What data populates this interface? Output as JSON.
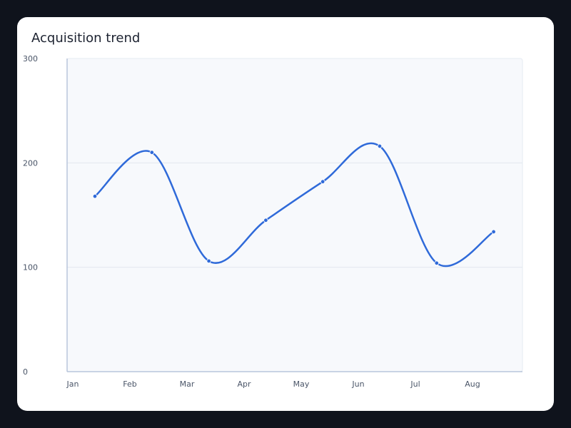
{
  "chart_data": {
    "type": "line",
    "title": "Acquisition trend",
    "xlabel": "",
    "ylabel": "",
    "categories": [
      "Jan",
      "Feb",
      "Mar",
      "Apr",
      "May",
      "Jun",
      "Jul",
      "Aug"
    ],
    "series": [
      {
        "values": [
          168,
          210,
          106,
          145,
          182,
          216,
          104,
          134
        ]
      }
    ],
    "ylim": [
      0,
      300
    ],
    "yticks": [
      "0",
      "100",
      "200",
      "300"
    ],
    "grid": true,
    "colors": {
      "line": "#2f6ad9",
      "plot_bg": "#f7f9fc",
      "grid": "#e3e8ef",
      "axis": "#b9c6db"
    }
  }
}
